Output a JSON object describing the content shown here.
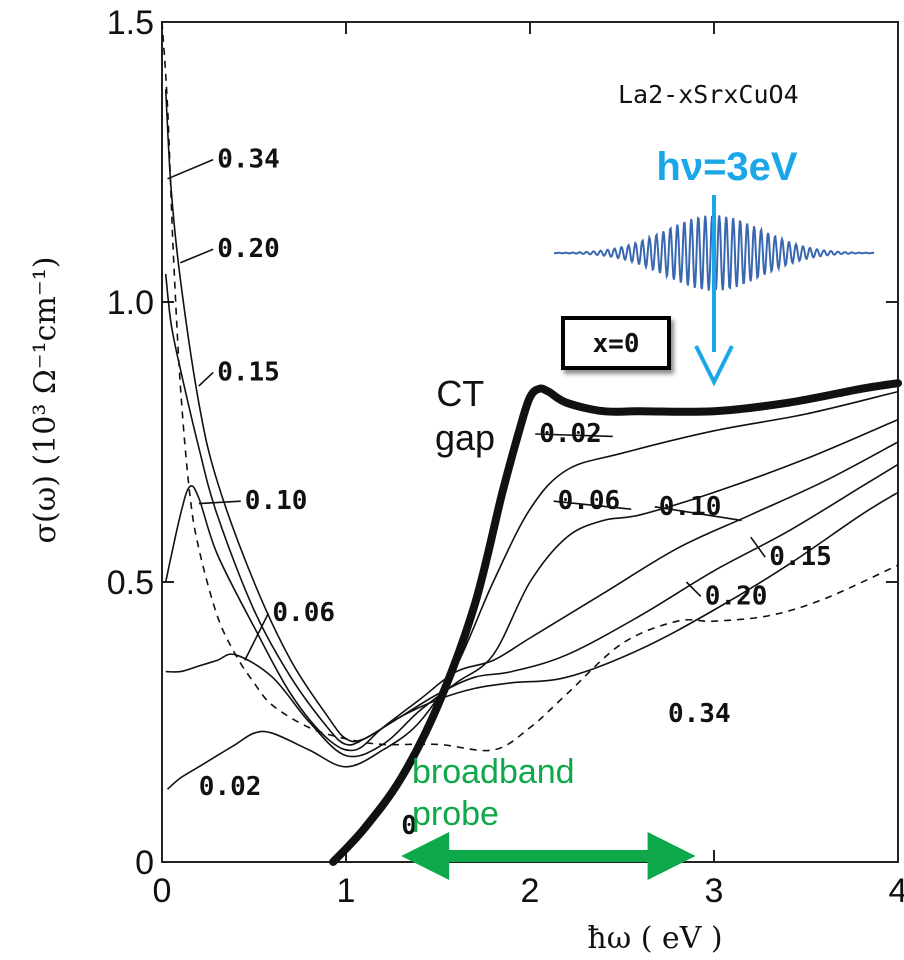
{
  "chart_data": {
    "type": "line",
    "title": "",
    "xlabel": "ħω ( eV )",
    "ylabel": "σ(ω) (10³ Ω⁻¹cm⁻¹)",
    "xlim": [
      0,
      4
    ],
    "ylim": [
      0,
      1.5
    ],
    "x_ticks": [
      "0",
      "1",
      "2",
      "3",
      "4"
    ],
    "y_ticks": [
      "0",
      "0.5",
      "1.0",
      "1.5"
    ],
    "formula": "La2-xSrxCuO4",
    "series": [
      {
        "name": "0",
        "style": "bold",
        "x": [
          0.93,
          1.1,
          1.3,
          1.5,
          1.7,
          1.85,
          1.95,
          2.0,
          2.05,
          2.1,
          2.2,
          2.4,
          2.6,
          3.0,
          3.4,
          3.8,
          4.0
        ],
        "y": [
          0.0,
          0.06,
          0.15,
          0.28,
          0.46,
          0.66,
          0.78,
          0.83,
          0.845,
          0.84,
          0.82,
          0.805,
          0.805,
          0.805,
          0.82,
          0.845,
          0.855
        ]
      },
      {
        "name": "0.02",
        "x": [
          0.03,
          0.1,
          0.2,
          0.3,
          0.4,
          0.5,
          0.6,
          0.8,
          1.0,
          1.2,
          1.4,
          1.6,
          1.8,
          2.0,
          2.2,
          2.5,
          3.0,
          3.5,
          4.0
        ],
        "y": [
          0.13,
          0.15,
          0.17,
          0.19,
          0.21,
          0.23,
          0.23,
          0.2,
          0.17,
          0.2,
          0.25,
          0.35,
          0.5,
          0.63,
          0.7,
          0.73,
          0.77,
          0.8,
          0.84
        ]
      },
      {
        "name": "0.06",
        "x": [
          0.02,
          0.1,
          0.2,
          0.3,
          0.4,
          0.6,
          0.8,
          1.0,
          1.2,
          1.4,
          1.6,
          1.8,
          2.0,
          2.2,
          2.4,
          2.6,
          3.0,
          3.5,
          4.0
        ],
        "y": [
          0.34,
          0.34,
          0.35,
          0.36,
          0.37,
          0.33,
          0.25,
          0.19,
          0.21,
          0.27,
          0.32,
          0.37,
          0.5,
          0.58,
          0.61,
          0.62,
          0.66,
          0.72,
          0.79
        ]
      },
      {
        "name": "0.10",
        "x": [
          0.02,
          0.1,
          0.15,
          0.2,
          0.3,
          0.5,
          0.7,
          0.9,
          1.05,
          1.2,
          1.4,
          1.6,
          1.8,
          2.0,
          2.4,
          2.8,
          3.2,
          3.6,
          4.0
        ],
        "y": [
          0.5,
          0.62,
          0.67,
          0.65,
          0.55,
          0.42,
          0.3,
          0.22,
          0.2,
          0.24,
          0.29,
          0.34,
          0.36,
          0.4,
          0.48,
          0.56,
          0.62,
          0.68,
          0.75
        ]
      },
      {
        "name": "0.15",
        "x": [
          0.02,
          0.05,
          0.1,
          0.2,
          0.3,
          0.5,
          0.7,
          0.9,
          1.0,
          1.1,
          1.3,
          1.5,
          1.7,
          1.9,
          2.2,
          2.6,
          3.0,
          3.4,
          3.8,
          4.0
        ],
        "y": [
          1.05,
          0.96,
          0.88,
          0.74,
          0.62,
          0.45,
          0.33,
          0.24,
          0.21,
          0.22,
          0.26,
          0.3,
          0.33,
          0.34,
          0.37,
          0.44,
          0.52,
          0.59,
          0.67,
          0.71
        ]
      },
      {
        "name": "0.20",
        "x": [
          0.02,
          0.05,
          0.1,
          0.2,
          0.3,
          0.5,
          0.7,
          0.9,
          1.0,
          1.1,
          1.3,
          1.5,
          1.7,
          1.9,
          2.2,
          2.6,
          3.0,
          3.4,
          3.8,
          4.0
        ],
        "y": [
          1.38,
          1.2,
          1.04,
          0.82,
          0.68,
          0.5,
          0.36,
          0.26,
          0.22,
          0.22,
          0.26,
          0.29,
          0.31,
          0.32,
          0.33,
          0.38,
          0.45,
          0.53,
          0.62,
          0.66
        ]
      },
      {
        "name": "0.34",
        "style": "dashed",
        "x": [
          0.0,
          0.03,
          0.06,
          0.1,
          0.15,
          0.2,
          0.3,
          0.4,
          0.5,
          0.6,
          0.8,
          1.0,
          1.2,
          1.5,
          1.8,
          2.0,
          2.2,
          2.5,
          2.8,
          3.0,
          3.3,
          3.6,
          4.0
        ],
        "y": [
          1.5,
          1.35,
          1.1,
          0.85,
          0.66,
          0.56,
          0.44,
          0.37,
          0.32,
          0.28,
          0.24,
          0.22,
          0.21,
          0.21,
          0.2,
          0.24,
          0.3,
          0.39,
          0.43,
          0.43,
          0.44,
          0.47,
          0.53
        ]
      }
    ],
    "series_labels": [
      {
        "text": "0.34",
        "series": "0.34",
        "x": 0.3,
        "y": 1.24,
        "ax": 0.03,
        "ay": 1.22
      },
      {
        "text": "0.20",
        "series": "0.20",
        "x": 0.3,
        "y": 1.08,
        "ax": 0.1,
        "ay": 1.07
      },
      {
        "text": "0.15",
        "series": "0.15",
        "x": 0.3,
        "y": 0.86,
        "ax": 0.2,
        "ay": 0.85
      },
      {
        "text": "0.10",
        "series": "0.10",
        "x": 0.45,
        "y": 0.63,
        "ax": 0.2,
        "ay": 0.64
      },
      {
        "text": "0.06",
        "series": "0.06",
        "x": 0.6,
        "y": 0.43,
        "ax": 0.45,
        "ay": 0.36
      },
      {
        "text": "0.02",
        "series": "0.02",
        "x": 0.2,
        "y": 0.12,
        "ax": null,
        "ay": null
      },
      {
        "text": "0.02",
        "series": "0.02",
        "x": 2.05,
        "y": 0.75,
        "ax": 2.45,
        "ay": 0.76
      },
      {
        "text": "0.06",
        "series": "0.06",
        "x": 2.15,
        "y": 0.63,
        "ax": 2.55,
        "ay": 0.63
      },
      {
        "text": "0.10",
        "series": "0.10",
        "x": 2.7,
        "y": 0.62,
        "ax": 3.15,
        "ay": 0.61
      },
      {
        "text": "0.15",
        "series": "0.15",
        "x": 3.3,
        "y": 0.53,
        "ax": 3.2,
        "ay": 0.58
      },
      {
        "text": "0.20",
        "series": "0.20",
        "x": 2.95,
        "y": 0.46,
        "ax": 2.85,
        "ay": 0.5
      },
      {
        "text": "0.34",
        "series": "0.34",
        "x": 2.75,
        "y": 0.25,
        "ax": null,
        "ay": null
      },
      {
        "text": "0",
        "series": "0",
        "x": 1.3,
        "y": 0.05,
        "ax": null,
        "ay": null
      }
    ]
  },
  "annotations": {
    "x0_label": "x=0",
    "ct_gap": [
      "CT",
      "gap"
    ],
    "pump_label": "hν=3eV",
    "probe_label": [
      "broadband",
      "probe"
    ],
    "pump_color": "#1aa7e8",
    "pulse_color": "#3a68b0",
    "probe_color": "#0fa84a",
    "probe_range_ev": [
      1.3,
      2.9
    ],
    "pump_energy_ev": 3.0
  }
}
